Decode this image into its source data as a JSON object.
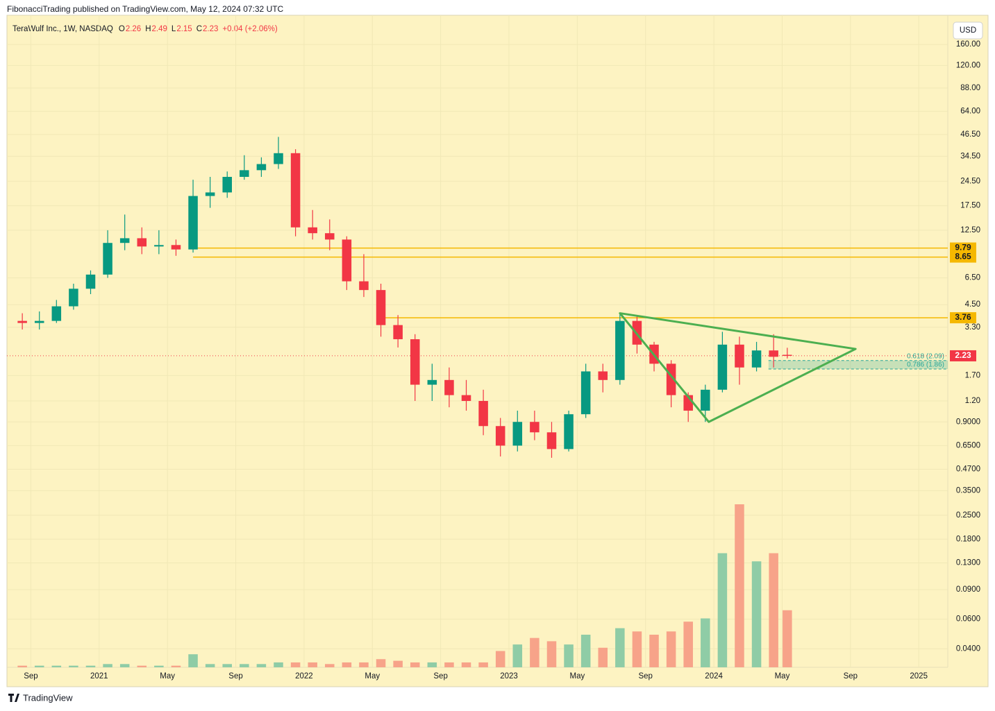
{
  "chart_data": {
    "type": "candlestick",
    "publisher": "FibonacciTrading published on TradingView.com, May 12, 2024 07:32 UTC",
    "symbol": "TeraWulf Inc., 1W, NASDAQ",
    "ohlc_legend": {
      "o_label": "O",
      "o": 2.26,
      "h_label": "H",
      "h": 2.49,
      "l_label": "L",
      "l": 2.15,
      "c_label": "C",
      "c": 2.23,
      "change": "+0.04 (+2.06%)"
    },
    "currency": "USD",
    "brand": "TradingView",
    "log_scale": true,
    "grid": true,
    "up_color": "#089981",
    "down_color": "#f23645",
    "volume_up_color": "#8fcca6",
    "volume_down_color": "#f7a389",
    "xlim": [
      -1.4,
      53.7
    ],
    "xticks": [
      {
        "value": 0,
        "label": "Sep"
      },
      {
        "value": 4,
        "label": "2021"
      },
      {
        "value": 8,
        "label": "May"
      },
      {
        "value": 12,
        "label": "Sep"
      },
      {
        "value": 16,
        "label": "2022"
      },
      {
        "value": 20,
        "label": "May"
      },
      {
        "value": 24,
        "label": "Sep"
      },
      {
        "value": 28,
        "label": "2023"
      },
      {
        "value": 32,
        "label": "May"
      },
      {
        "value": 36,
        "label": "Sep"
      },
      {
        "value": 40,
        "label": "2024"
      },
      {
        "value": 44,
        "label": "May"
      },
      {
        "value": 48,
        "label": "Sep"
      },
      {
        "value": 52,
        "label": "2025"
      }
    ],
    "ylim": [
      0.031,
      239
    ],
    "yticks": [
      {
        "value": 160,
        "label": "160.00"
      },
      {
        "value": 120,
        "label": "120.00"
      },
      {
        "value": 88,
        "label": "88.00"
      },
      {
        "value": 64,
        "label": "64.00"
      },
      {
        "value": 46.5,
        "label": "46.50"
      },
      {
        "value": 34.5,
        "label": "34.50"
      },
      {
        "value": 24.5,
        "label": "24.50"
      },
      {
        "value": 17.5,
        "label": "17.50"
      },
      {
        "value": 12.5,
        "label": "12.50"
      },
      {
        "value": 6.5,
        "label": "6.50"
      },
      {
        "value": 4.5,
        "label": "4.50"
      },
      {
        "value": 3.3,
        "label": "3.30"
      },
      {
        "value": 1.7,
        "label": "1.70"
      },
      {
        "value": 1.2,
        "label": "1.20"
      },
      {
        "value": 0.9,
        "label": "0.9000"
      },
      {
        "value": 0.65,
        "label": "0.6500"
      },
      {
        "value": 0.47,
        "label": "0.4700"
      },
      {
        "value": 0.35,
        "label": "0.3500"
      },
      {
        "value": 0.25,
        "label": "0.2500"
      },
      {
        "value": 0.18,
        "label": "0.1800"
      },
      {
        "value": 0.13,
        "label": "0.1300"
      },
      {
        "value": 0.09,
        "label": "0.0900"
      },
      {
        "value": 0.06,
        "label": "0.0600"
      },
      {
        "value": 0.04,
        "label": "0.0400"
      }
    ],
    "levels": [
      {
        "value": 9.79,
        "start": 9.5
      },
      {
        "value": 8.65,
        "start": 9.5
      },
      {
        "value": 3.76,
        "start": 20.3
      }
    ],
    "level_color": "#f5b800",
    "last_price": 2.23,
    "last_price_color": "#f23645",
    "triangle": [
      [
        34.5,
        4.0
      ],
      [
        48.3,
        2.45
      ],
      [
        39.7,
        0.9
      ]
    ],
    "triangle_color": "#4caf50",
    "fib_zone": {
      "start": 43.2,
      "levels": [
        {
          "value": 2.09,
          "label": "0.618 (2.09)"
        },
        {
          "value": 1.86,
          "label": "0.786 (1.86)"
        }
      ],
      "color": "#26a69a"
    },
    "volume_lim": [
      0,
      100
    ],
    "candles": [
      {
        "x": -0.5,
        "o": 3.6,
        "h": 4.0,
        "l": 3.2,
        "c": 3.5
      },
      {
        "x": 0.5,
        "o": 3.5,
        "h": 4.1,
        "l": 3.2,
        "c": 3.6
      },
      {
        "x": 1.5,
        "o": 3.6,
        "h": 4.8,
        "l": 3.5,
        "c": 4.4
      },
      {
        "x": 2.5,
        "o": 4.4,
        "h": 6.0,
        "l": 4.2,
        "c": 5.6
      },
      {
        "x": 3.5,
        "o": 5.6,
        "h": 7.2,
        "l": 5.2,
        "c": 6.8
      },
      {
        "x": 4.5,
        "o": 6.8,
        "h": 12.5,
        "l": 6.5,
        "c": 10.5
      },
      {
        "x": 5.5,
        "o": 10.5,
        "h": 15.5,
        "l": 9.5,
        "c": 11.2
      },
      {
        "x": 6.5,
        "o": 11.2,
        "h": 13.0,
        "l": 9.0,
        "c": 10.0
      },
      {
        "x": 7.5,
        "o": 10.0,
        "h": 12.5,
        "l": 9.0,
        "c": 10.2
      },
      {
        "x": 8.5,
        "o": 10.2,
        "h": 11.0,
        "l": 8.8,
        "c": 9.6
      },
      {
        "x": 9.5,
        "o": 9.6,
        "h": 25.0,
        "l": 9.2,
        "c": 20.0
      },
      {
        "x": 10.5,
        "o": 20.0,
        "h": 26.0,
        "l": 17.0,
        "c": 21.0
      },
      {
        "x": 11.5,
        "o": 21.0,
        "h": 28.0,
        "l": 19.5,
        "c": 26.0
      },
      {
        "x": 12.5,
        "o": 26.0,
        "h": 35.0,
        "l": 25.0,
        "c": 28.5
      },
      {
        "x": 13.5,
        "o": 28.5,
        "h": 34.0,
        "l": 26.0,
        "c": 31.0
      },
      {
        "x": 14.5,
        "o": 31.0,
        "h": 45.0,
        "l": 29.0,
        "c": 36.0
      },
      {
        "x": 15.5,
        "o": 36.0,
        "h": 38.0,
        "l": 11.5,
        "c": 13.0
      },
      {
        "x": 16.5,
        "o": 13.0,
        "h": 16.5,
        "l": 11.0,
        "c": 12.0
      },
      {
        "x": 17.5,
        "o": 12.0,
        "h": 14.5,
        "l": 9.5,
        "c": 11.0
      },
      {
        "x": 18.5,
        "o": 11.0,
        "h": 11.5,
        "l": 5.5,
        "c": 6.2
      },
      {
        "x": 19.5,
        "o": 6.2,
        "h": 9.0,
        "l": 5.0,
        "c": 5.5
      },
      {
        "x": 20.5,
        "o": 5.5,
        "h": 6.0,
        "l": 2.9,
        "c": 3.4
      },
      {
        "x": 21.5,
        "o": 3.4,
        "h": 3.9,
        "l": 2.5,
        "c": 2.8
      },
      {
        "x": 22.5,
        "o": 2.8,
        "h": 3.0,
        "l": 1.2,
        "c": 1.5
      },
      {
        "x": 23.5,
        "o": 1.5,
        "h": 2.0,
        "l": 1.2,
        "c": 1.6
      },
      {
        "x": 24.5,
        "o": 1.6,
        "h": 1.9,
        "l": 1.1,
        "c": 1.3
      },
      {
        "x": 25.5,
        "o": 1.3,
        "h": 1.6,
        "l": 1.05,
        "c": 1.2
      },
      {
        "x": 26.5,
        "o": 1.2,
        "h": 1.4,
        "l": 0.75,
        "c": 0.85
      },
      {
        "x": 27.5,
        "o": 0.85,
        "h": 0.95,
        "l": 0.56,
        "c": 0.65
      },
      {
        "x": 28.5,
        "o": 0.65,
        "h": 1.05,
        "l": 0.6,
        "c": 0.9
      },
      {
        "x": 29.5,
        "o": 0.9,
        "h": 1.05,
        "l": 0.7,
        "c": 0.78
      },
      {
        "x": 30.5,
        "o": 0.78,
        "h": 0.9,
        "l": 0.55,
        "c": 0.62
      },
      {
        "x": 31.5,
        "o": 0.62,
        "h": 1.05,
        "l": 0.6,
        "c": 1.0
      },
      {
        "x": 32.5,
        "o": 1.0,
        "h": 2.0,
        "l": 0.95,
        "c": 1.8
      },
      {
        "x": 33.5,
        "o": 1.8,
        "h": 2.0,
        "l": 1.35,
        "c": 1.6
      },
      {
        "x": 34.5,
        "o": 1.6,
        "h": 4.0,
        "l": 1.5,
        "c": 3.6
      },
      {
        "x": 35.5,
        "o": 3.6,
        "h": 3.9,
        "l": 2.3,
        "c": 2.6
      },
      {
        "x": 36.5,
        "o": 2.6,
        "h": 2.7,
        "l": 1.8,
        "c": 2.0
      },
      {
        "x": 37.5,
        "o": 2.0,
        "h": 2.1,
        "l": 1.1,
        "c": 1.3
      },
      {
        "x": 38.5,
        "o": 1.3,
        "h": 1.35,
        "l": 0.9,
        "c": 1.05
      },
      {
        "x": 39.5,
        "o": 1.05,
        "h": 1.5,
        "l": 0.9,
        "c": 1.4
      },
      {
        "x": 40.5,
        "o": 1.4,
        "h": 3.1,
        "l": 1.35,
        "c": 2.6
      },
      {
        "x": 41.5,
        "o": 2.6,
        "h": 2.9,
        "l": 1.5,
        "c": 1.9
      },
      {
        "x": 42.5,
        "o": 1.9,
        "h": 2.7,
        "l": 1.8,
        "c": 2.4
      },
      {
        "x": 43.5,
        "o": 2.4,
        "h": 3.0,
        "l": 1.9,
        "c": 2.2
      },
      {
        "x": 44.3,
        "o": 2.26,
        "h": 2.49,
        "l": 2.15,
        "c": 2.23
      }
    ],
    "volume": [
      1,
      1,
      1,
      1,
      1,
      2,
      2,
      1,
      1,
      1,
      8,
      2,
      2,
      2,
      2,
      3,
      3,
      3,
      2,
      3,
      3,
      5,
      4,
      3,
      3,
      3,
      3,
      3,
      10,
      14,
      18,
      16,
      14,
      20,
      12,
      24,
      22,
      20,
      22,
      28,
      30,
      70,
      100,
      65,
      70,
      35
    ]
  }
}
